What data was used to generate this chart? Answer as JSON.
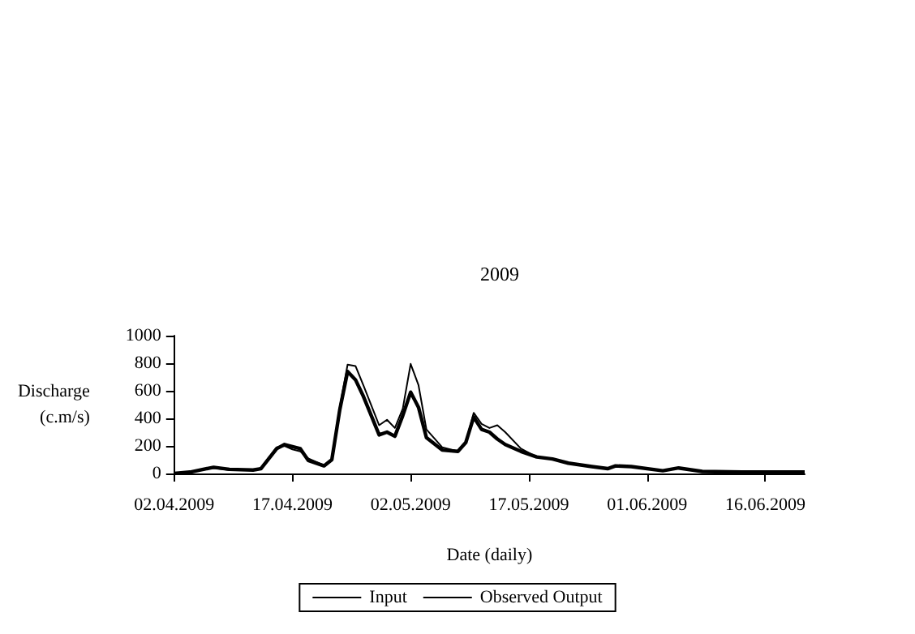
{
  "chart_data": {
    "type": "line",
    "title": "2009",
    "xlabel": "Date (daily)",
    "ylabel": "Discharge\n(c.m/s)",
    "x": [
      "2009-04-02",
      "2009-04-04",
      "2009-04-07",
      "2009-04-09",
      "2009-04-12",
      "2009-04-13",
      "2009-04-15",
      "2009-04-16",
      "2009-04-17",
      "2009-04-18",
      "2009-04-19",
      "2009-04-21",
      "2009-04-22",
      "2009-04-23",
      "2009-04-24",
      "2009-04-25",
      "2009-04-26",
      "2009-04-28",
      "2009-04-29",
      "2009-04-30",
      "2009-05-01",
      "2009-05-02",
      "2009-05-03",
      "2009-05-04",
      "2009-05-06",
      "2009-05-08",
      "2009-05-09",
      "2009-05-10",
      "2009-05-11",
      "2009-05-12",
      "2009-05-13",
      "2009-05-14",
      "2009-05-16",
      "2009-05-18",
      "2009-05-20",
      "2009-05-22",
      "2009-05-25",
      "2009-05-27",
      "2009-05-28",
      "2009-05-30",
      "2009-06-03",
      "2009-06-05",
      "2009-06-08",
      "2009-06-13",
      "2009-06-21"
    ],
    "series": [
      {
        "name": "Input",
        "color": "#000000",
        "values": [
          0,
          10,
          40,
          25,
          25,
          40,
          190,
          200,
          175,
          160,
          110,
          60,
          95,
          480,
          790,
          780,
          640,
          350,
          390,
          330,
          470,
          795,
          640,
          320,
          190,
          160,
          225,
          440,
          360,
          330,
          350,
          300,
          180,
          120,
          105,
          75,
          50,
          35,
          55,
          50,
          20,
          40,
          15,
          10,
          10
        ]
      },
      {
        "name": "Observed Output",
        "color": "#000000",
        "values": [
          0,
          10,
          45,
          30,
          25,
          35,
          180,
          210,
          195,
          180,
          95,
          55,
          100,
          460,
          740,
          680,
          560,
          280,
          300,
          270,
          420,
          590,
          480,
          260,
          170,
          160,
          225,
          410,
          320,
          300,
          250,
          210,
          160,
          120,
          105,
          75,
          50,
          35,
          55,
          50,
          20,
          40,
          15,
          10,
          10
        ]
      }
    ],
    "xlim": [
      "2009-04-02",
      "2009-06-21"
    ],
    "xticks": [
      {
        "value": "2009-04-02",
        "label": "02.04.2009"
      },
      {
        "value": "2009-04-17",
        "label": "17.04.2009"
      },
      {
        "value": "2009-05-02",
        "label": "02.05.2009"
      },
      {
        "value": "2009-05-17",
        "label": "17.05.2009"
      },
      {
        "value": "2009-06-01",
        "label": "01.06.2009"
      },
      {
        "value": "2009-06-16",
        "label": "16.06.2009"
      }
    ],
    "ylim": [
      0,
      1000
    ],
    "yticks": [
      0,
      200,
      400,
      600,
      800,
      1000
    ],
    "grid": false,
    "legend": "bottom",
    "marker": "none",
    "line_style": "solid"
  }
}
